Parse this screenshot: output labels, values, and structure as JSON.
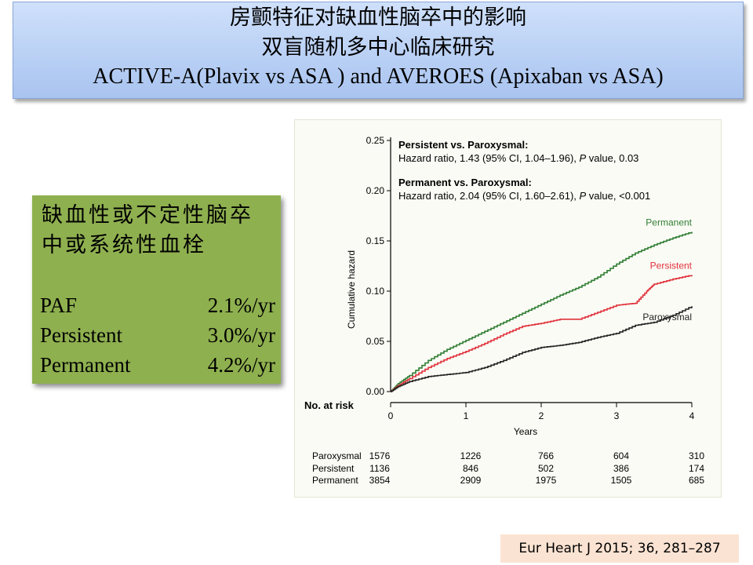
{
  "title": {
    "line1": "房颤特征对缺血性脑卒中的影响",
    "line2": "双盲随机多中心临床研究",
    "line3": "ACTIVE-A(Plavix vs ASA ) and AVEROES (Apixaban vs ASA)"
  },
  "summary": {
    "heading_line1": "缺血性或不定性脑卒",
    "heading_line2": "中或系统性血栓",
    "rows": [
      {
        "label": "PAF",
        "value": "2.1%/yr"
      },
      {
        "label": "Persistent",
        "value": "3.0%/yr"
      },
      {
        "label": "Permanent",
        "value": "4.2%/yr"
      }
    ]
  },
  "chart_data": {
    "type": "line",
    "ylabel": "Cumulative hazard",
    "xlabel": "Years",
    "xlim": [
      0,
      4
    ],
    "ylim": [
      0,
      0.25
    ],
    "x_ticks": [
      "0",
      "1",
      "2",
      "3",
      "4"
    ],
    "y_ticks": [
      "0.00",
      "0.05",
      "0.10",
      "0.15",
      "0.20",
      "0.25"
    ],
    "annotations": [
      {
        "title": "Persistent vs. Paroxysmal:",
        "text_before": "Hazard ratio, 1.43 (95% CI, 1.04–1.96), ",
        "p_label": "P",
        "text_after": " value, 0.03"
      },
      {
        "title": "Permanent vs. Paroxysmal:",
        "text_before": "Hazard ratio, 2.04 (95% CI, 1.60–2.61), ",
        "p_label": "P",
        "text_after": " value, <0.001"
      }
    ],
    "series": [
      {
        "name": "Permanent",
        "color": "#2e7d32",
        "x": [
          0,
          0.1,
          0.25,
          0.5,
          0.75,
          1.0,
          1.25,
          1.5,
          1.75,
          2.0,
          2.25,
          2.5,
          2.75,
          3.0,
          3.25,
          3.5,
          3.75,
          4.0
        ],
        "y": [
          0,
          0.008,
          0.016,
          0.031,
          0.042,
          0.051,
          0.06,
          0.069,
          0.078,
          0.087,
          0.096,
          0.104,
          0.114,
          0.127,
          0.138,
          0.146,
          0.153,
          0.159
        ]
      },
      {
        "name": "Persistent",
        "color": "#e0303a",
        "x": [
          0,
          0.1,
          0.25,
          0.5,
          0.75,
          1.0,
          1.25,
          1.5,
          1.75,
          2.0,
          2.25,
          2.5,
          2.75,
          3.0,
          3.25,
          3.4,
          3.5,
          3.75,
          4.0
        ],
        "y": [
          0,
          0.006,
          0.013,
          0.024,
          0.033,
          0.04,
          0.048,
          0.057,
          0.065,
          0.068,
          0.072,
          0.072,
          0.079,
          0.086,
          0.088,
          0.1,
          0.107,
          0.112,
          0.116
        ]
      },
      {
        "name": "Paroxysmal",
        "color": "#222222",
        "x": [
          0,
          0.1,
          0.25,
          0.5,
          0.75,
          1.0,
          1.25,
          1.5,
          1.75,
          2.0,
          2.25,
          2.5,
          2.75,
          3.0,
          3.25,
          3.5,
          3.75,
          4.0
        ],
        "y": [
          0,
          0.005,
          0.01,
          0.015,
          0.017,
          0.019,
          0.024,
          0.031,
          0.039,
          0.044,
          0.046,
          0.049,
          0.054,
          0.058,
          0.066,
          0.069,
          0.076,
          0.085
        ]
      }
    ],
    "risk_table": {
      "title": "No. at risk",
      "rows": [
        {
          "label": "Paroxysmal",
          "values": [
            "1576",
            "1226",
            "766",
            "604",
            "310"
          ]
        },
        {
          "label": "Persistent",
          "values": [
            "1136",
            "846",
            "502",
            "386",
            "174"
          ]
        },
        {
          "label": "Permanent",
          "values": [
            "3854",
            "2909",
            "1975",
            "1505",
            "685"
          ]
        }
      ]
    }
  },
  "citation": "Eur Heart J 2015; 36, 281–287"
}
